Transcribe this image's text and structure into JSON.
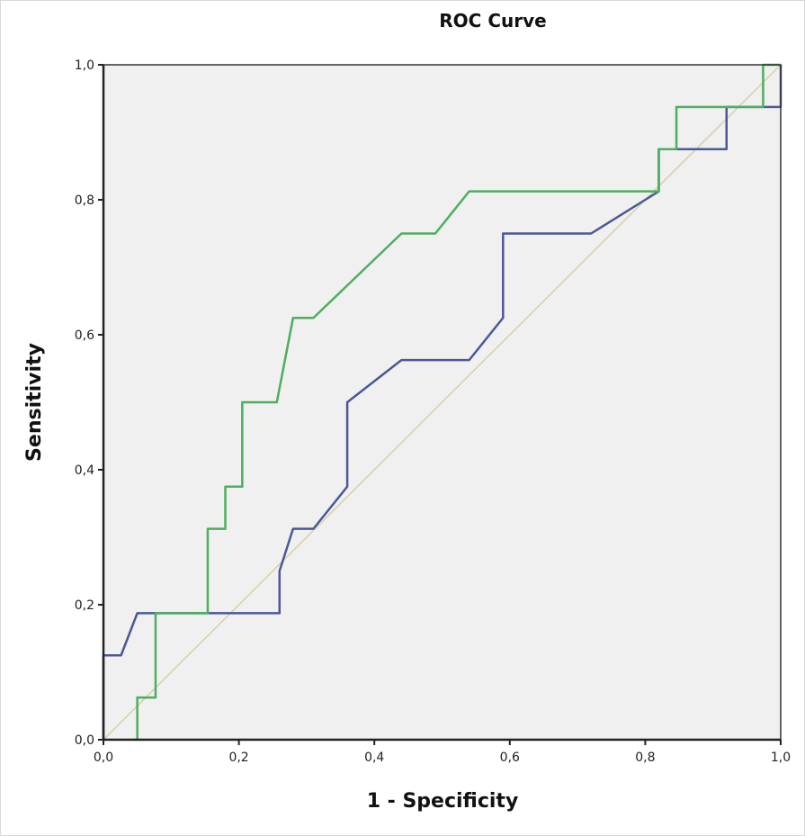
{
  "chart_data": {
    "type": "line",
    "title": "ROC Curve",
    "xlabel": "1 - Specificity",
    "ylabel": "Sensitivity",
    "xlim": [
      0,
      1
    ],
    "ylim": [
      0,
      1
    ],
    "xticks": [
      "0,0",
      "0,2",
      "0,4",
      "0,6",
      "0,8",
      "1,0"
    ],
    "yticks": [
      "0,0",
      "0,2",
      "0,4",
      "0,6",
      "0,8",
      "1,0"
    ],
    "grid": false,
    "background": "#f0f0f0",
    "series": [
      {
        "color": "#4a5898",
        "x": [
          0,
          0,
          0.026,
          0.05,
          0.26,
          0.26,
          0.28,
          0.31,
          0.36,
          0.36,
          0.44,
          0.54,
          0.59,
          0.59,
          0.72,
          0.82,
          0.82,
          0.92,
          0.92,
          1.0,
          1.0
        ],
        "y": [
          0,
          0.125,
          0.125,
          0.1875,
          0.1875,
          0.25,
          0.3125,
          0.3125,
          0.375,
          0.5,
          0.5625,
          0.5625,
          0.625,
          0.75,
          0.75,
          0.8125,
          0.875,
          0.875,
          0.9375,
          0.9375,
          1.0
        ]
      },
      {
        "color": "#4caf5e",
        "x": [
          0.05,
          0.05,
          0.077,
          0.077,
          0.154,
          0.154,
          0.18,
          0.18,
          0.205,
          0.205,
          0.256,
          0.28,
          0.31,
          0.44,
          0.49,
          0.54,
          0.82,
          0.82,
          0.846,
          0.846,
          0.974,
          0.974,
          1.0
        ],
        "y": [
          0,
          0.0625,
          0.0625,
          0.1875,
          0.1875,
          0.3125,
          0.3125,
          0.375,
          0.375,
          0.5,
          0.5,
          0.625,
          0.625,
          0.75,
          0.75,
          0.8125,
          0.8125,
          0.875,
          0.875,
          0.9375,
          0.9375,
          1.0,
          1.0
        ]
      },
      {
        "color": "#d6cfa6",
        "x": [
          0,
          1
        ],
        "y": [
          0,
          1
        ]
      }
    ]
  }
}
